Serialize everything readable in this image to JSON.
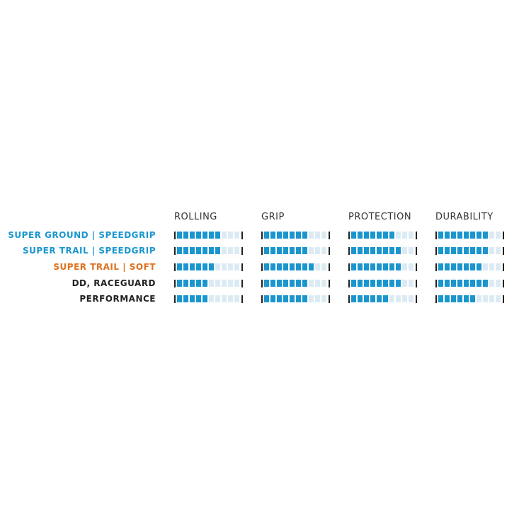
{
  "chart_data": {
    "type": "table",
    "max": 10,
    "categories": [
      "ROLLING",
      "GRIP",
      "PROTECTION",
      "DURABILITY"
    ],
    "rows": [
      {
        "name": "SUPER GROUND | SPEEDGRIP",
        "color": "#1a96cf",
        "values": [
          7,
          7,
          7,
          8
        ]
      },
      {
        "name": "SUPER TRAIL | SPEEDGRIP",
        "color": "#1a96cf",
        "values": [
          7,
          7,
          8,
          8
        ]
      },
      {
        "name": "SUPER TRAIL | SOFT",
        "color": "#e0701e",
        "values": [
          6,
          8,
          8,
          7
        ]
      },
      {
        "name": "DD, RACEGUARD",
        "color": "#222222",
        "values": [
          5,
          7,
          8,
          8
        ]
      },
      {
        "name": "PERFORMANCE",
        "color": "#222222",
        "values": [
          5,
          7,
          6,
          6
        ]
      }
    ]
  }
}
